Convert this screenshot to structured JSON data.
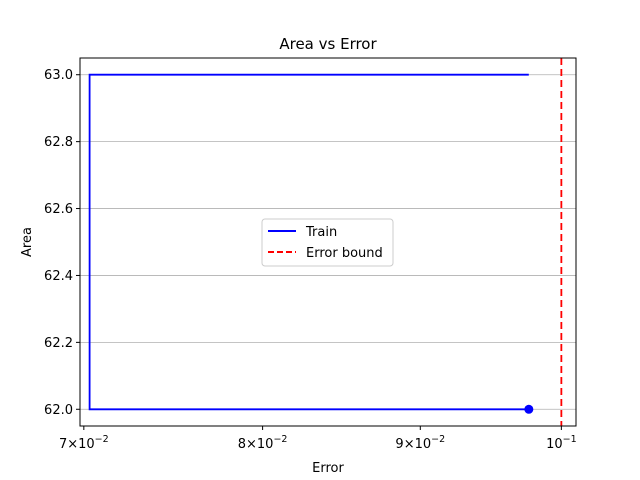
{
  "chart_data": {
    "type": "line",
    "title": "Area vs Error",
    "xlabel": "Error",
    "ylabel": "Area",
    "xscale": "log",
    "xlim": [
      0.0698,
      0.1011
    ],
    "ylim": [
      61.95,
      63.05
    ],
    "grid": "y-major",
    "legend_placement": "center",
    "xticks": [
      {
        "value": 0.07,
        "mantissa": "7",
        "base": "10",
        "exp": "−2"
      },
      {
        "value": 0.08,
        "mantissa": "8",
        "base": "10",
        "exp": "−2"
      },
      {
        "value": 0.09,
        "mantissa": "9",
        "base": "10",
        "exp": "−2"
      },
      {
        "value": 0.1,
        "mantissa": "",
        "base": "10",
        "exp": "−1"
      }
    ],
    "yticks": [
      {
        "value": 62.0,
        "label": "62.0"
      },
      {
        "value": 62.2,
        "label": "62.2"
      },
      {
        "value": 62.4,
        "label": "62.4"
      },
      {
        "value": 62.6,
        "label": "62.6"
      },
      {
        "value": 62.8,
        "label": "62.8"
      },
      {
        "value": 63.0,
        "label": "63.0"
      }
    ],
    "series": [
      {
        "name": "Train",
        "color": "#0000ff",
        "style": "solid",
        "x": [
          0.0976,
          0.0703,
          0.0703,
          0.0976
        ],
        "y": [
          62.0,
          62.0,
          63.0,
          63.0
        ],
        "marker_at_start": true
      }
    ],
    "reference_lines": [
      {
        "name": "Error bound",
        "orientation": "vertical",
        "x": 0.1,
        "color": "#ff0000",
        "style": "dashed"
      }
    ]
  }
}
